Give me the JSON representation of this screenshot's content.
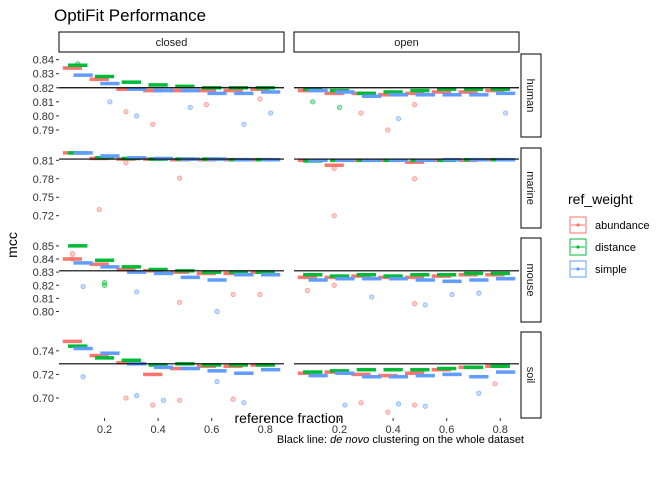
{
  "chart_data": {
    "type": "scatter",
    "title": "OptiFit Performance",
    "xlabel": "reference fraction",
    "ylabel": "mcc",
    "x_ticks": [
      0.2,
      0.4,
      0.6,
      0.8
    ],
    "x_ticks_display": [
      "0.2",
      "0.4",
      "0.6",
      "0.8"
    ],
    "xlim": [
      0.03,
      0.87
    ],
    "facet_cols": [
      "closed",
      "open"
    ],
    "facet_rows": [
      {
        "name": "human",
        "ylim": [
          0.785,
          0.844
        ],
        "ticks": [
          0.79,
          0.8,
          0.81,
          0.82,
          0.83,
          0.84
        ],
        "tick_labels": [
          "0.79",
          "0.80",
          "0.81",
          "0.82",
          "0.83",
          "0.84"
        ]
      },
      {
        "name": "marine",
        "ylim": [
          0.7,
          0.83
        ],
        "ticks": [
          0.72,
          0.75,
          0.78,
          0.81
        ],
        "tick_labels": [
          "0.72",
          "0.75",
          "0.78",
          "0.81"
        ]
      },
      {
        "name": "mouse",
        "ylim": [
          0.792,
          0.856
        ],
        "ticks": [
          0.8,
          0.81,
          0.82,
          0.83,
          0.84,
          0.85
        ],
        "tick_labels": [
          "0.80",
          "0.81",
          "0.82",
          "0.83",
          "0.84",
          "0.85"
        ]
      },
      {
        "name": "soil",
        "ylim": [
          0.683,
          0.756
        ],
        "ticks": [
          0.7,
          0.72,
          0.74
        ],
        "tick_labels": [
          "0.70",
          "0.72",
          "0.74"
        ]
      }
    ],
    "denovo_lines": {
      "human": 0.82,
      "marine": 0.812,
      "mouse": 0.831,
      "soil": 0.729
    },
    "legend": {
      "title": "ref_weight",
      "entries": [
        {
          "name": "abundance",
          "color": "#F8766D"
        },
        {
          "name": "distance",
          "color": "#00BA38"
        },
        {
          "name": "simple",
          "color": "#619CFF"
        }
      ]
    },
    "caption_plain": "Black line: ",
    "caption_italic": "de novo",
    "caption_rest": " clustering on the whole dataset",
    "series": [
      {
        "name": "abundance",
        "color": "#F8766D",
        "offset": -0.02,
        "medians": {
          "human": {
            "closed": [
              0.834,
              0.826,
              0.819,
              0.818,
              0.818,
              0.818,
              0.818,
              0.819
            ],
            "open": [
              0.818,
              0.816,
              0.816,
              0.815,
              0.816,
              0.817,
              0.817,
              0.818
            ]
          },
          "marine": {
            "closed": [
              0.822,
              0.813,
              0.812,
              0.812,
              0.811,
              0.811,
              0.811,
              0.811
            ],
            "open": [
              0.81,
              0.802,
              0.81,
              0.81,
              0.807,
              0.81,
              0.81,
              0.811
            ]
          },
          "mouse": {
            "closed": [
              0.84,
              0.836,
              0.832,
              0.831,
              0.83,
              0.829,
              0.829,
              0.83
            ],
            "open": [
              0.826,
              0.826,
              0.827,
              0.826,
              0.826,
              0.827,
              0.828,
              0.828
            ]
          },
          "soil": {
            "closed": [
              0.748,
              0.736,
              0.73,
              0.72,
              0.725,
              0.727,
              0.727,
              0.728
            ],
            "open": [
              0.721,
              0.722,
              0.72,
              0.719,
              0.721,
              0.724,
              0.726,
              0.727
            ]
          }
        }
      },
      {
        "name": "distance",
        "color": "#00BA38",
        "offset": 0.0,
        "medians": {
          "human": {
            "closed": [
              0.836,
              0.828,
              0.824,
              0.822,
              0.821,
              0.82,
              0.82,
              0.82
            ],
            "open": [
              0.819,
              0.818,
              0.816,
              0.817,
              0.818,
              0.819,
              0.819,
              0.819
            ]
          },
          "marine": {
            "closed": [
              0.822,
              0.814,
              0.813,
              0.812,
              0.812,
              0.812,
              0.811,
              0.811
            ],
            "open": [
              0.809,
              0.81,
              0.81,
              0.81,
              0.81,
              0.81,
              0.811,
              0.811
            ]
          },
          "mouse": {
            "closed": [
              0.85,
              0.839,
              0.834,
              0.832,
              0.831,
              0.83,
              0.83,
              0.83
            ],
            "open": [
              0.828,
              0.827,
              0.828,
              0.827,
              0.828,
              0.828,
              0.829,
              0.829
            ]
          },
          "soil": {
            "closed": [
              0.744,
              0.734,
              0.732,
              0.728,
              0.729,
              0.728,
              0.728,
              0.728
            ],
            "open": [
              0.722,
              0.723,
              0.724,
              0.724,
              0.724,
              0.725,
              0.726,
              0.727
            ]
          }
        }
      },
      {
        "name": "simple",
        "color": "#619CFF",
        "offset": 0.02,
        "medians": {
          "human": {
            "closed": [
              0.829,
              0.823,
              0.819,
              0.818,
              0.818,
              0.816,
              0.816,
              0.817
            ],
            "open": [
              0.818,
              0.817,
              0.814,
              0.815,
              0.815,
              0.815,
              0.815,
              0.816
            ]
          },
          "marine": {
            "closed": [
              0.822,
              0.817,
              0.814,
              0.813,
              0.812,
              0.812,
              0.811,
              0.811
            ],
            "open": [
              0.81,
              0.81,
              0.81,
              0.81,
              0.81,
              0.811,
              0.811,
              0.811
            ]
          },
          "mouse": {
            "closed": [
              0.837,
              0.834,
              0.83,
              0.829,
              0.826,
              0.824,
              0.828,
              0.828
            ],
            "open": [
              0.824,
              0.825,
              0.825,
              0.825,
              0.824,
              0.823,
              0.824,
              0.825
            ]
          },
          "soil": {
            "closed": [
              0.742,
              0.738,
              0.729,
              0.726,
              0.725,
              0.723,
              0.721,
              0.724
            ],
            "open": [
              0.719,
              0.721,
              0.718,
              0.718,
              0.719,
              0.72,
              0.718,
              0.722
            ]
          }
        }
      }
    ],
    "points": [
      {
        "series": "abundance",
        "row": "human",
        "col": "closed",
        "x": 0.4,
        "y": 0.794
      },
      {
        "series": "abundance",
        "row": "human",
        "col": "closed",
        "x": 0.3,
        "y": 0.803
      },
      {
        "series": "abundance",
        "row": "human",
        "col": "closed",
        "x": 0.6,
        "y": 0.808
      },
      {
        "series": "abundance",
        "row": "human",
        "col": "closed",
        "x": 0.8,
        "y": 0.812
      },
      {
        "series": "simple",
        "row": "human",
        "col": "closed",
        "x": 0.2,
        "y": 0.81
      },
      {
        "series": "simple",
        "row": "human",
        "col": "closed",
        "x": 0.3,
        "y": 0.8
      },
      {
        "series": "simple",
        "row": "human",
        "col": "closed",
        "x": 0.5,
        "y": 0.806
      },
      {
        "series": "simple",
        "row": "human",
        "col": "closed",
        "x": 0.7,
        "y": 0.794
      },
      {
        "series": "simple",
        "row": "human",
        "col": "closed",
        "x": 0.8,
        "y": 0.802
      },
      {
        "series": "distance",
        "row": "human",
        "col": "closed",
        "x": 0.1,
        "y": 0.837
      },
      {
        "series": "abundance",
        "row": "human",
        "col": "open",
        "x": 0.3,
        "y": 0.802
      },
      {
        "series": "abundance",
        "row": "human",
        "col": "open",
        "x": 0.4,
        "y": 0.79
      },
      {
        "series": "abundance",
        "row": "human",
        "col": "open",
        "x": 0.5,
        "y": 0.808
      },
      {
        "series": "simple",
        "row": "human",
        "col": "open",
        "x": 0.4,
        "y": 0.798
      },
      {
        "series": "simple",
        "row": "human",
        "col": "open",
        "x": 0.8,
        "y": 0.802
      },
      {
        "series": "distance",
        "row": "human",
        "col": "open",
        "x": 0.1,
        "y": 0.81
      },
      {
        "series": "distance",
        "row": "human",
        "col": "open",
        "x": 0.2,
        "y": 0.806
      },
      {
        "series": "abundance",
        "row": "marine",
        "col": "closed",
        "x": 0.2,
        "y": 0.73
      },
      {
        "series": "abundance",
        "row": "marine",
        "col": "closed",
        "x": 0.5,
        "y": 0.781
      },
      {
        "series": "abundance",
        "row": "marine",
        "col": "closed",
        "x": 0.3,
        "y": 0.806
      },
      {
        "series": "abundance",
        "row": "marine",
        "col": "open",
        "x": 0.2,
        "y": 0.72
      },
      {
        "series": "abundance",
        "row": "marine",
        "col": "open",
        "x": 0.5,
        "y": 0.78
      },
      {
        "series": "abundance",
        "row": "marine",
        "col": "open",
        "x": 0.2,
        "y": 0.797
      },
      {
        "series": "abundance",
        "row": "mouse",
        "col": "closed",
        "x": 0.1,
        "y": 0.844
      },
      {
        "series": "abundance",
        "row": "mouse",
        "col": "closed",
        "x": 0.1,
        "y": 0.84
      },
      {
        "series": "abundance",
        "row": "mouse",
        "col": "closed",
        "x": 0.5,
        "y": 0.807
      },
      {
        "series": "abundance",
        "row": "mouse",
        "col": "closed",
        "x": 0.7,
        "y": 0.813
      },
      {
        "series": "abundance",
        "row": "mouse",
        "col": "closed",
        "x": 0.8,
        "y": 0.813
      },
      {
        "series": "simple",
        "row": "mouse",
        "col": "closed",
        "x": 0.1,
        "y": 0.819
      },
      {
        "series": "simple",
        "row": "mouse",
        "col": "closed",
        "x": 0.3,
        "y": 0.815
      },
      {
        "series": "simple",
        "row": "mouse",
        "col": "closed",
        "x": 0.6,
        "y": 0.8
      },
      {
        "series": "distance",
        "row": "mouse",
        "col": "closed",
        "x": 0.2,
        "y": 0.822
      },
      {
        "series": "distance",
        "row": "mouse",
        "col": "closed",
        "x": 0.2,
        "y": 0.82
      },
      {
        "series": "abundance",
        "row": "mouse",
        "col": "open",
        "x": 0.1,
        "y": 0.816
      },
      {
        "series": "abundance",
        "row": "mouse",
        "col": "open",
        "x": 0.2,
        "y": 0.82
      },
      {
        "series": "abundance",
        "row": "mouse",
        "col": "open",
        "x": 0.5,
        "y": 0.806
      },
      {
        "series": "simple",
        "row": "mouse",
        "col": "open",
        "x": 0.3,
        "y": 0.811
      },
      {
        "series": "simple",
        "row": "mouse",
        "col": "open",
        "x": 0.5,
        "y": 0.805
      },
      {
        "series": "simple",
        "row": "mouse",
        "col": "open",
        "x": 0.6,
        "y": 0.813
      },
      {
        "series": "simple",
        "row": "mouse",
        "col": "open",
        "x": 0.7,
        "y": 0.814
      },
      {
        "series": "abundance",
        "row": "soil",
        "col": "closed",
        "x": 0.3,
        "y": 0.7
      },
      {
        "series": "abundance",
        "row": "soil",
        "col": "closed",
        "x": 0.4,
        "y": 0.694
      },
      {
        "series": "abundance",
        "row": "soil",
        "col": "closed",
        "x": 0.5,
        "y": 0.698
      },
      {
        "series": "abundance",
        "row": "soil",
        "col": "closed",
        "x": 0.7,
        "y": 0.699
      },
      {
        "series": "simple",
        "row": "soil",
        "col": "closed",
        "x": 0.1,
        "y": 0.718
      },
      {
        "series": "simple",
        "row": "soil",
        "col": "closed",
        "x": 0.3,
        "y": 0.702
      },
      {
        "series": "simple",
        "row": "soil",
        "col": "closed",
        "x": 0.4,
        "y": 0.698
      },
      {
        "series": "simple",
        "row": "soil",
        "col": "closed",
        "x": 0.6,
        "y": 0.714
      },
      {
        "series": "simple",
        "row": "soil",
        "col": "closed",
        "x": 0.7,
        "y": 0.696
      },
      {
        "series": "abundance",
        "row": "soil",
        "col": "open",
        "x": 0.3,
        "y": 0.696
      },
      {
        "series": "abundance",
        "row": "soil",
        "col": "open",
        "x": 0.4,
        "y": 0.688
      },
      {
        "series": "abundance",
        "row": "soil",
        "col": "open",
        "x": 0.5,
        "y": 0.694
      },
      {
        "series": "abundance",
        "row": "soil",
        "col": "open",
        "x": 0.8,
        "y": 0.712
      },
      {
        "series": "simple",
        "row": "soil",
        "col": "open",
        "x": 0.2,
        "y": 0.694
      },
      {
        "series": "simple",
        "row": "soil",
        "col": "open",
        "x": 0.4,
        "y": 0.695
      },
      {
        "series": "simple",
        "row": "soil",
        "col": "open",
        "x": 0.5,
        "y": 0.693
      },
      {
        "series": "simple",
        "row": "soil",
        "col": "open",
        "x": 0.7,
        "y": 0.704
      }
    ]
  }
}
